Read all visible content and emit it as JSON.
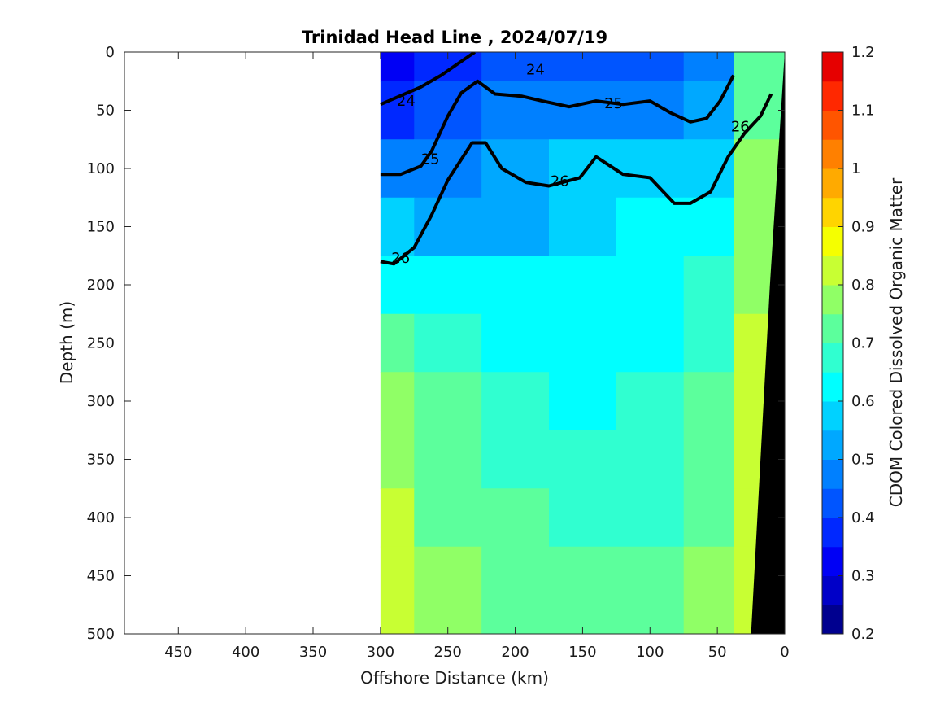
{
  "chart_data": {
    "type": "heatmap",
    "title": "Trinidad Head Line , 2024/07/19",
    "xlabel": "Offshore Distance (km)",
    "ylabel": "Depth (m)",
    "colorbar_label": "CDOM Colored Dissolved Organic Matter",
    "xlim": [
      490,
      0
    ],
    "ylim": [
      0,
      500
    ],
    "x_ticks": [
      "450",
      "400",
      "350",
      "300",
      "250",
      "200",
      "150",
      "100",
      "50",
      "0"
    ],
    "x_tick_values": [
      450,
      400,
      350,
      300,
      250,
      200,
      150,
      100,
      50,
      0
    ],
    "y_ticks": [
      "0",
      "50",
      "100",
      "150",
      "200",
      "250",
      "300",
      "350",
      "400",
      "450",
      "500"
    ],
    "y_tick_values": [
      0,
      50,
      100,
      150,
      200,
      250,
      300,
      350,
      400,
      450,
      500
    ],
    "colorbar_ticks": [
      "0.2",
      "0.3",
      "0.4",
      "0.5",
      "0.6",
      "0.7",
      "0.8",
      "0.9",
      "1",
      "1.1",
      "1.2"
    ],
    "colorbar_tick_values": [
      0.2,
      0.3,
      0.4,
      0.5,
      0.6,
      0.7,
      0.8,
      0.9,
      1.0,
      1.1,
      1.2
    ],
    "colorbar_levels": [
      0.2,
      0.25,
      0.3,
      0.35,
      0.4,
      0.45,
      0.5,
      0.55,
      0.6,
      0.65,
      0.7,
      0.75,
      0.8,
      0.85,
      0.9,
      0.95,
      1.0,
      1.05,
      1.1,
      1.15,
      1.2
    ],
    "colormap": [
      "#00008f",
      "#0000c8",
      "#0000f5",
      "#0028ff",
      "#0055ff",
      "#0080ff",
      "#00a8ff",
      "#00d2ff",
      "#00ffff",
      "#30ffd0",
      "#5cff9c",
      "#90ff66",
      "#c8ff33",
      "#f5ff00",
      "#ffd400",
      "#ffaa00",
      "#ff8000",
      "#ff5500",
      "#ff2800",
      "#e60000",
      "#b40000"
    ],
    "data_x_range": [
      300,
      0
    ],
    "cdom_x": [
      300,
      250,
      200,
      150,
      100,
      50,
      25
    ],
    "cdom_depth": [
      0,
      50,
      100,
      150,
      200,
      250,
      300,
      350,
      400,
      450,
      500
    ],
    "cdom": [
      [
        0.3,
        0.36,
        0.4,
        0.42,
        0.4,
        0.45,
        0.7
      ],
      [
        0.38,
        0.4,
        0.45,
        0.46,
        0.45,
        0.5,
        0.72
      ],
      [
        0.45,
        0.47,
        0.52,
        0.56,
        0.55,
        0.58,
        0.75
      ],
      [
        0.55,
        0.52,
        0.5,
        0.58,
        0.6,
        0.62,
        0.76
      ],
      [
        0.62,
        0.6,
        0.6,
        0.62,
        0.62,
        0.66,
        0.78
      ],
      [
        0.7,
        0.66,
        0.64,
        0.63,
        0.63,
        0.68,
        0.8
      ],
      [
        0.76,
        0.7,
        0.66,
        0.64,
        0.65,
        0.7,
        0.8
      ],
      [
        0.78,
        0.72,
        0.68,
        0.65,
        0.66,
        0.72,
        0.8
      ],
      [
        0.8,
        0.74,
        0.7,
        0.67,
        0.68,
        0.74,
        0.8
      ],
      [
        0.8,
        0.76,
        0.72,
        0.7,
        0.72,
        0.76,
        0.8
      ],
      [
        0.82,
        0.78,
        0.74,
        0.72,
        0.74,
        0.78,
        0.8
      ]
    ],
    "isopycnals": [
      {
        "label": "24",
        "x": [
          300,
          290,
          270,
          255,
          240,
          230
        ],
        "depth": [
          45,
          40,
          30,
          20,
          8,
          0
        ]
      },
      {
        "label": "25",
        "x": [
          300,
          285,
          270,
          262,
          250,
          240,
          228,
          215,
          195,
          180,
          160,
          140,
          120,
          100,
          85,
          70,
          58,
          48,
          38
        ],
        "depth": [
          105,
          105,
          98,
          85,
          55,
          35,
          25,
          36,
          38,
          42,
          47,
          42,
          45,
          42,
          52,
          60,
          57,
          42,
          20
        ]
      },
      {
        "label": "26",
        "x": [
          300,
          290,
          275,
          262,
          250,
          232,
          222,
          210,
          192,
          175,
          152,
          140,
          120,
          100,
          82,
          70,
          55,
          42,
          30,
          18,
          10
        ],
        "depth": [
          180,
          182,
          168,
          140,
          110,
          78,
          78,
          100,
          112,
          115,
          108,
          90,
          105,
          108,
          130,
          130,
          120,
          90,
          70,
          55,
          36
        ]
      }
    ],
    "isopycnal_labels": [
      {
        "text": "24",
        "x": 281,
        "depth": 42
      },
      {
        "text": "24",
        "x": 185,
        "depth": 15
      },
      {
        "text": "25",
        "x": 263,
        "depth": 92
      },
      {
        "text": "25",
        "x": 127,
        "depth": 44
      },
      {
        "text": "26",
        "x": 285,
        "depth": 177
      },
      {
        "text": "26",
        "x": 167,
        "depth": 111
      },
      {
        "text": "26",
        "x": 33,
        "depth": 64
      }
    ],
    "seafloor": {
      "x": [
        0,
        0,
        25,
        11
      ],
      "depth": [
        0,
        500,
        500,
        200
      ]
    },
    "grid": false,
    "colorbar_placement": "right"
  }
}
